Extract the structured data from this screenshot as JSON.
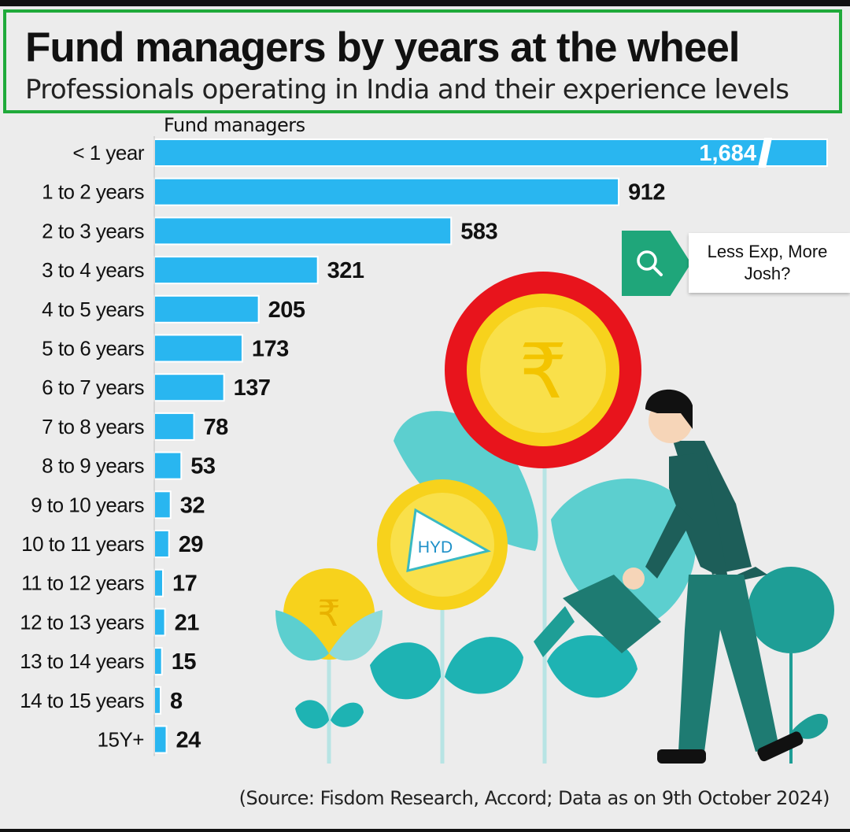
{
  "header": {
    "title": "Fund managers by years at the wheel",
    "subtitle": "Professionals operating in India and their experience levels"
  },
  "callout": {
    "text": "Less Exp, More Josh?",
    "icon": "search-icon"
  },
  "badge": {
    "text": "HYD"
  },
  "source": "(Source: Fisdom Research, Accord; Data as on 9th October 2024)",
  "colors": {
    "bar": "#29b6f0",
    "bar_edge": "#ffffff",
    "accent_green": "#1faa3a",
    "teal": "#1e9e96",
    "light_teal": "#5ccfcf",
    "coin": "#f7d21c",
    "flower_red": "#e8141c"
  },
  "chart_data": {
    "type": "bar",
    "orientation": "horizontal",
    "title": "Fund managers by years at the wheel",
    "subtitle": "Professionals operating in India and their experience levels",
    "ylabel": "Fund managers",
    "categories": [
      "< 1 year",
      "1 to 2 years",
      "2 to 3 years",
      "3 to 4 years",
      "4 to 5 years",
      "5 to 6 years",
      "6 to 7 years",
      "7 to 8 years",
      "8 to 9 years",
      "9 to 10 years",
      "10 to 11 years",
      "11 to 12 years",
      "12 to 13 years",
      "13 to 14 years",
      "14 to 15 years",
      "15Y+"
    ],
    "values": [
      1684,
      912,
      583,
      321,
      205,
      173,
      137,
      78,
      53,
      32,
      29,
      17,
      21,
      15,
      8,
      24
    ],
    "value_labels": [
      "1,684",
      "912",
      "583",
      "321",
      "205",
      "173",
      "137",
      "78",
      "53",
      "32",
      "29",
      "17",
      "21",
      "15",
      "8",
      "24"
    ],
    "axis_break_on_first_bar": true,
    "grid": false
  }
}
